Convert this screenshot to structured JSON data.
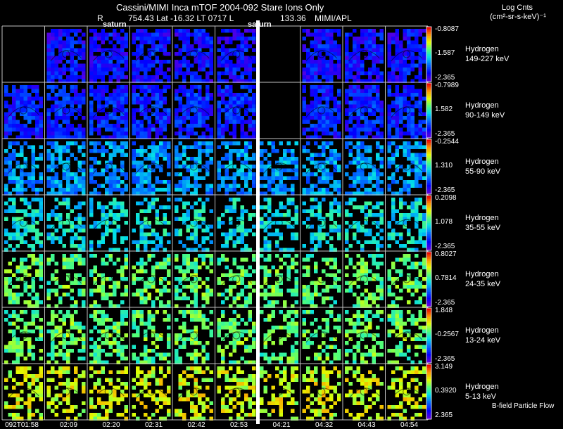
{
  "header": {
    "title": "Cassini/MIMI Inca mTOF  2004-092   Stare   Ions Only",
    "r_label": "R",
    "position": "754.43 Lat -16.32 LT 0717 L",
    "l_value": "133.36",
    "credit": "MIMI/APL",
    "units_line1": "Log Cnts",
    "units_line2": "(cm²-sr-s-keV)⁻¹"
  },
  "markers": {
    "saturn_left": "saturn",
    "saturn_right": "saturn"
  },
  "footer": {
    "bfield_label": "B-field Particle Flow"
  },
  "chart_data": {
    "type": "heatmap",
    "title": "Cassini/MIMI Inca mTOF  2004-092   Stare   Ions Only",
    "time_labels": [
      "092T01:58",
      "02:09",
      "02:20",
      "02:31",
      "02:42",
      "02:53",
      "04:21",
      "04:32",
      "04:43",
      "04:54"
    ],
    "rows": [
      {
        "species": "Hydrogen",
        "energy": "149-227 keV",
        "cmax": "-0.8087",
        "cmid": "-1.587",
        "cmin": "-2.365",
        "intensity": 0.12,
        "empty": [
          0,
          6
        ]
      },
      {
        "species": "Hydrogen",
        "energy": "90-149 keV",
        "cmax": "-0.7989",
        "cmid": "1.582",
        "cmin": "-2.365",
        "intensity": 0.15,
        "empty": [
          6
        ]
      },
      {
        "species": "Hydrogen",
        "energy": "55-90 keV",
        "cmax": "-0.2544",
        "cmid": "1.310",
        "cmin": "-2.365",
        "intensity": 0.32,
        "empty": []
      },
      {
        "species": "Hydrogen",
        "energy": "35-55 keV",
        "cmax": "0.2098",
        "cmid": "1.078",
        "cmin": "-2.365",
        "intensity": 0.42,
        "empty": []
      },
      {
        "species": "Hydrogen",
        "energy": "24-35 keV",
        "cmax": "0.8027",
        "cmid": "0.7814",
        "cmin": "-2.365",
        "intensity": 0.55,
        "empty": []
      },
      {
        "species": "Hydrogen",
        "energy": "13-24 keV",
        "cmax": "1.848",
        "cmid": "-0.2567",
        "cmin": "-2.365",
        "intensity": 0.56,
        "empty": []
      },
      {
        "species": "Hydrogen",
        "energy": "5-13 keV",
        "cmax": "3.149",
        "cmid": "0.3920",
        "cmin": "2.365",
        "intensity": 0.68,
        "empty": []
      }
    ]
  }
}
